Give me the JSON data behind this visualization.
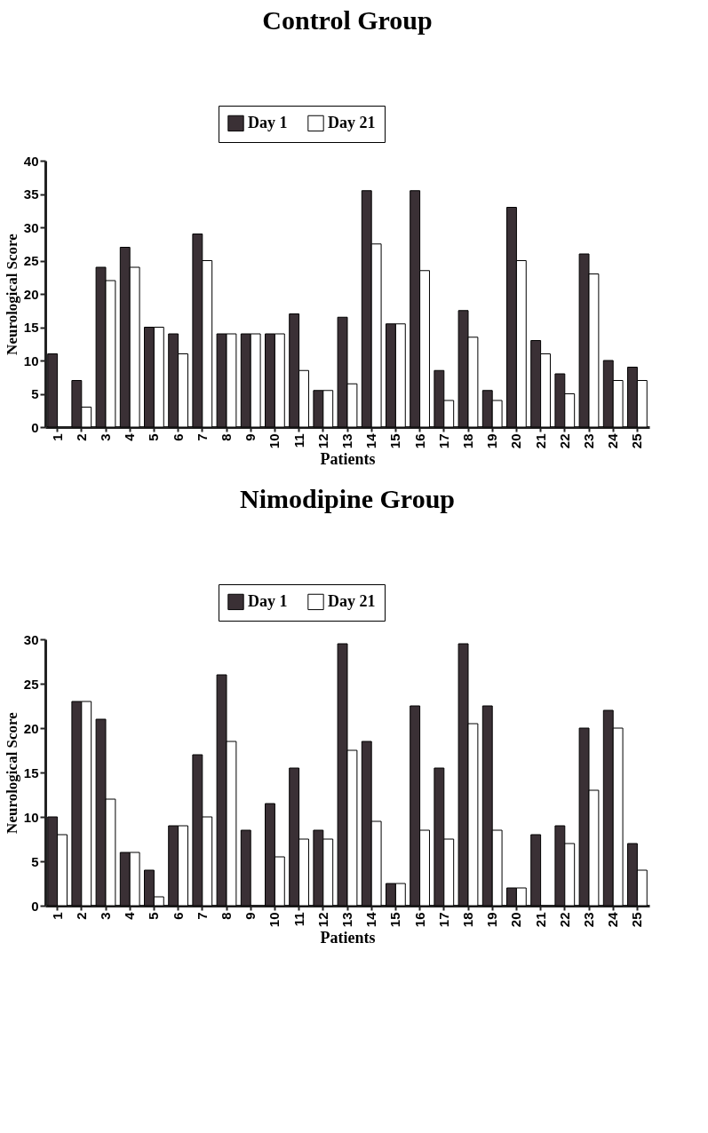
{
  "chart_data": [
    {
      "type": "bar",
      "title": "Control Group",
      "xlabel": "Patients",
      "ylabel": "Neurological Score",
      "categories": [
        "1",
        "2",
        "3",
        "4",
        "5",
        "6",
        "7",
        "8",
        "9",
        "10",
        "11",
        "12",
        "13",
        "14",
        "15",
        "16",
        "17",
        "18",
        "19",
        "20",
        "21",
        "22",
        "23",
        "24",
        "25"
      ],
      "series": [
        {
          "name": "Day 1",
          "color": "#3a3035",
          "values": [
            11,
            7,
            24,
            27,
            15,
            14,
            29,
            14,
            14,
            14,
            17,
            5.5,
            16.5,
            35.5,
            15.5,
            35.5,
            8.5,
            17.5,
            5.5,
            33,
            13,
            8,
            26,
            10,
            9
          ]
        },
        {
          "name": "Day 21",
          "color": "#ffffff",
          "values": [
            null,
            3,
            22,
            24,
            15,
            11,
            25,
            14,
            14,
            14,
            8.5,
            5.5,
            6.5,
            27.5,
            15.5,
            23.5,
            4,
            13.5,
            4,
            25,
            11,
            5,
            23,
            7,
            7
          ]
        }
      ],
      "ylim": [
        0,
        40
      ],
      "yticks": [
        0,
        5,
        10,
        15,
        20,
        25,
        30,
        35,
        40
      ],
      "grid": false,
      "legend": "top"
    },
    {
      "type": "bar",
      "title": "Nimodipine Group",
      "xlabel": "Patients",
      "ylabel": "Neurological Score",
      "categories": [
        "1",
        "2",
        "3",
        "4",
        "5",
        "6",
        "7",
        "8",
        "9",
        "10",
        "11",
        "12",
        "13",
        "14",
        "15",
        "16",
        "17",
        "18",
        "19",
        "20",
        "21",
        "22",
        "23",
        "24",
        "25"
      ],
      "series": [
        {
          "name": "Day 1",
          "color": "#3a3035",
          "values": [
            10,
            23,
            21,
            6,
            4,
            9,
            17,
            26,
            8.5,
            11.5,
            15.5,
            8.5,
            29.5,
            18.5,
            2.5,
            22.5,
            15.5,
            29.5,
            22.5,
            2,
            8,
            9,
            20,
            22,
            7
          ]
        },
        {
          "name": "Day 21",
          "color": "#ffffff",
          "values": [
            8,
            23,
            12,
            6,
            1,
            9,
            10,
            18.5,
            null,
            5.5,
            7.5,
            7.5,
            17.5,
            9.5,
            2.5,
            8.5,
            7.5,
            20.5,
            8.5,
            2,
            null,
            7,
            13,
            20,
            4
          ]
        }
      ],
      "ylim": [
        0,
        30
      ],
      "yticks": [
        0,
        5,
        10,
        15,
        20,
        25,
        30
      ],
      "grid": false,
      "legend": "top"
    }
  ]
}
